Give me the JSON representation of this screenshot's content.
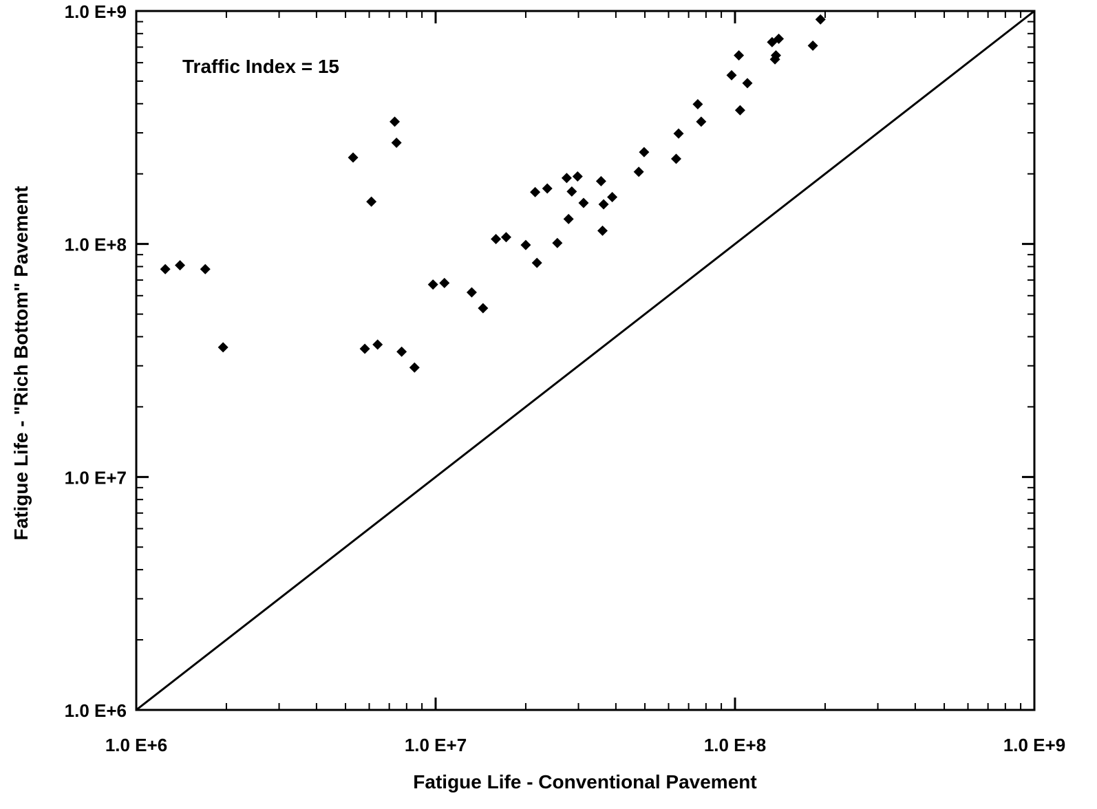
{
  "chart_data": {
    "type": "scatter",
    "title": "",
    "xlabel": "Fatigue Life - Conventional Pavement",
    "ylabel": "Fatigue Life - \"Rich Bottom\" Pavement",
    "xscale": "log",
    "yscale": "log",
    "xlim": [
      1000000,
      1000000000
    ],
    "ylim": [
      1000000,
      1000000000
    ],
    "grid": false,
    "x_ticks": [
      {
        "value": 1000000,
        "label": "1.0 E+6"
      },
      {
        "value": 10000000,
        "label": "1.0 E+7"
      },
      {
        "value": 100000000,
        "label": "1.0 E+8"
      },
      {
        "value": 1000000000,
        "label": "1.0 E+9"
      }
    ],
    "y_ticks": [
      {
        "value": 1000000,
        "label": "1.0 E+6"
      },
      {
        "value": 10000000,
        "label": "1.0 E+7"
      },
      {
        "value": 100000000,
        "label": "1.0 E+8"
      },
      {
        "value": 1000000000,
        "label": "1.0 E+9"
      }
    ],
    "annotation": "Traffic Index = 15",
    "reference_line": {
      "type": "equality",
      "from": [
        1000000,
        1000000
      ],
      "to": [
        1000000000,
        1000000000
      ]
    },
    "marker_color": "#000000",
    "series": [
      {
        "marker": "diamond",
        "points": [
          [
            1250000,
            78000000
          ],
          [
            1400000,
            81000000
          ],
          [
            1700000,
            78000000
          ],
          [
            1950000,
            36000000
          ],
          [
            5300000,
            235000000
          ],
          [
            5800000,
            35500000
          ],
          [
            6100000,
            152000000
          ],
          [
            6400000,
            37000000
          ],
          [
            7300000,
            335000000
          ],
          [
            7400000,
            272000000
          ],
          [
            7700000,
            34500000
          ],
          [
            8500000,
            29500000
          ],
          [
            9800000,
            67000000
          ],
          [
            10700000,
            68000000
          ],
          [
            13200000,
            62000000
          ],
          [
            14400000,
            53000000
          ],
          [
            15900000,
            105000000
          ],
          [
            17200000,
            107000000
          ],
          [
            20000000,
            99000000
          ],
          [
            21500000,
            167000000
          ],
          [
            21800000,
            83000000
          ],
          [
            23600000,
            173000000
          ],
          [
            25500000,
            101000000
          ],
          [
            27400000,
            192000000
          ],
          [
            27800000,
            128000000
          ],
          [
            28500000,
            168000000
          ],
          [
            29800000,
            195000000
          ],
          [
            31200000,
            150000000
          ],
          [
            35700000,
            186000000
          ],
          [
            36100000,
            114000000
          ],
          [
            36400000,
            148000000
          ],
          [
            38900000,
            159000000
          ],
          [
            47700000,
            204000000
          ],
          [
            49700000,
            248000000
          ],
          [
            63600000,
            232000000
          ],
          [
            64800000,
            298000000
          ],
          [
            75100000,
            398000000
          ],
          [
            77100000,
            335000000
          ],
          [
            97400000,
            530000000
          ],
          [
            103000000,
            645000000
          ],
          [
            104000000,
            375000000
          ],
          [
            110000000,
            490000000
          ],
          [
            133000000,
            735000000
          ],
          [
            136000000,
            620000000
          ],
          [
            137000000,
            645000000
          ],
          [
            140000000,
            760000000
          ],
          [
            182000000,
            710000000
          ],
          [
            193000000,
            920000000
          ]
        ]
      }
    ]
  }
}
